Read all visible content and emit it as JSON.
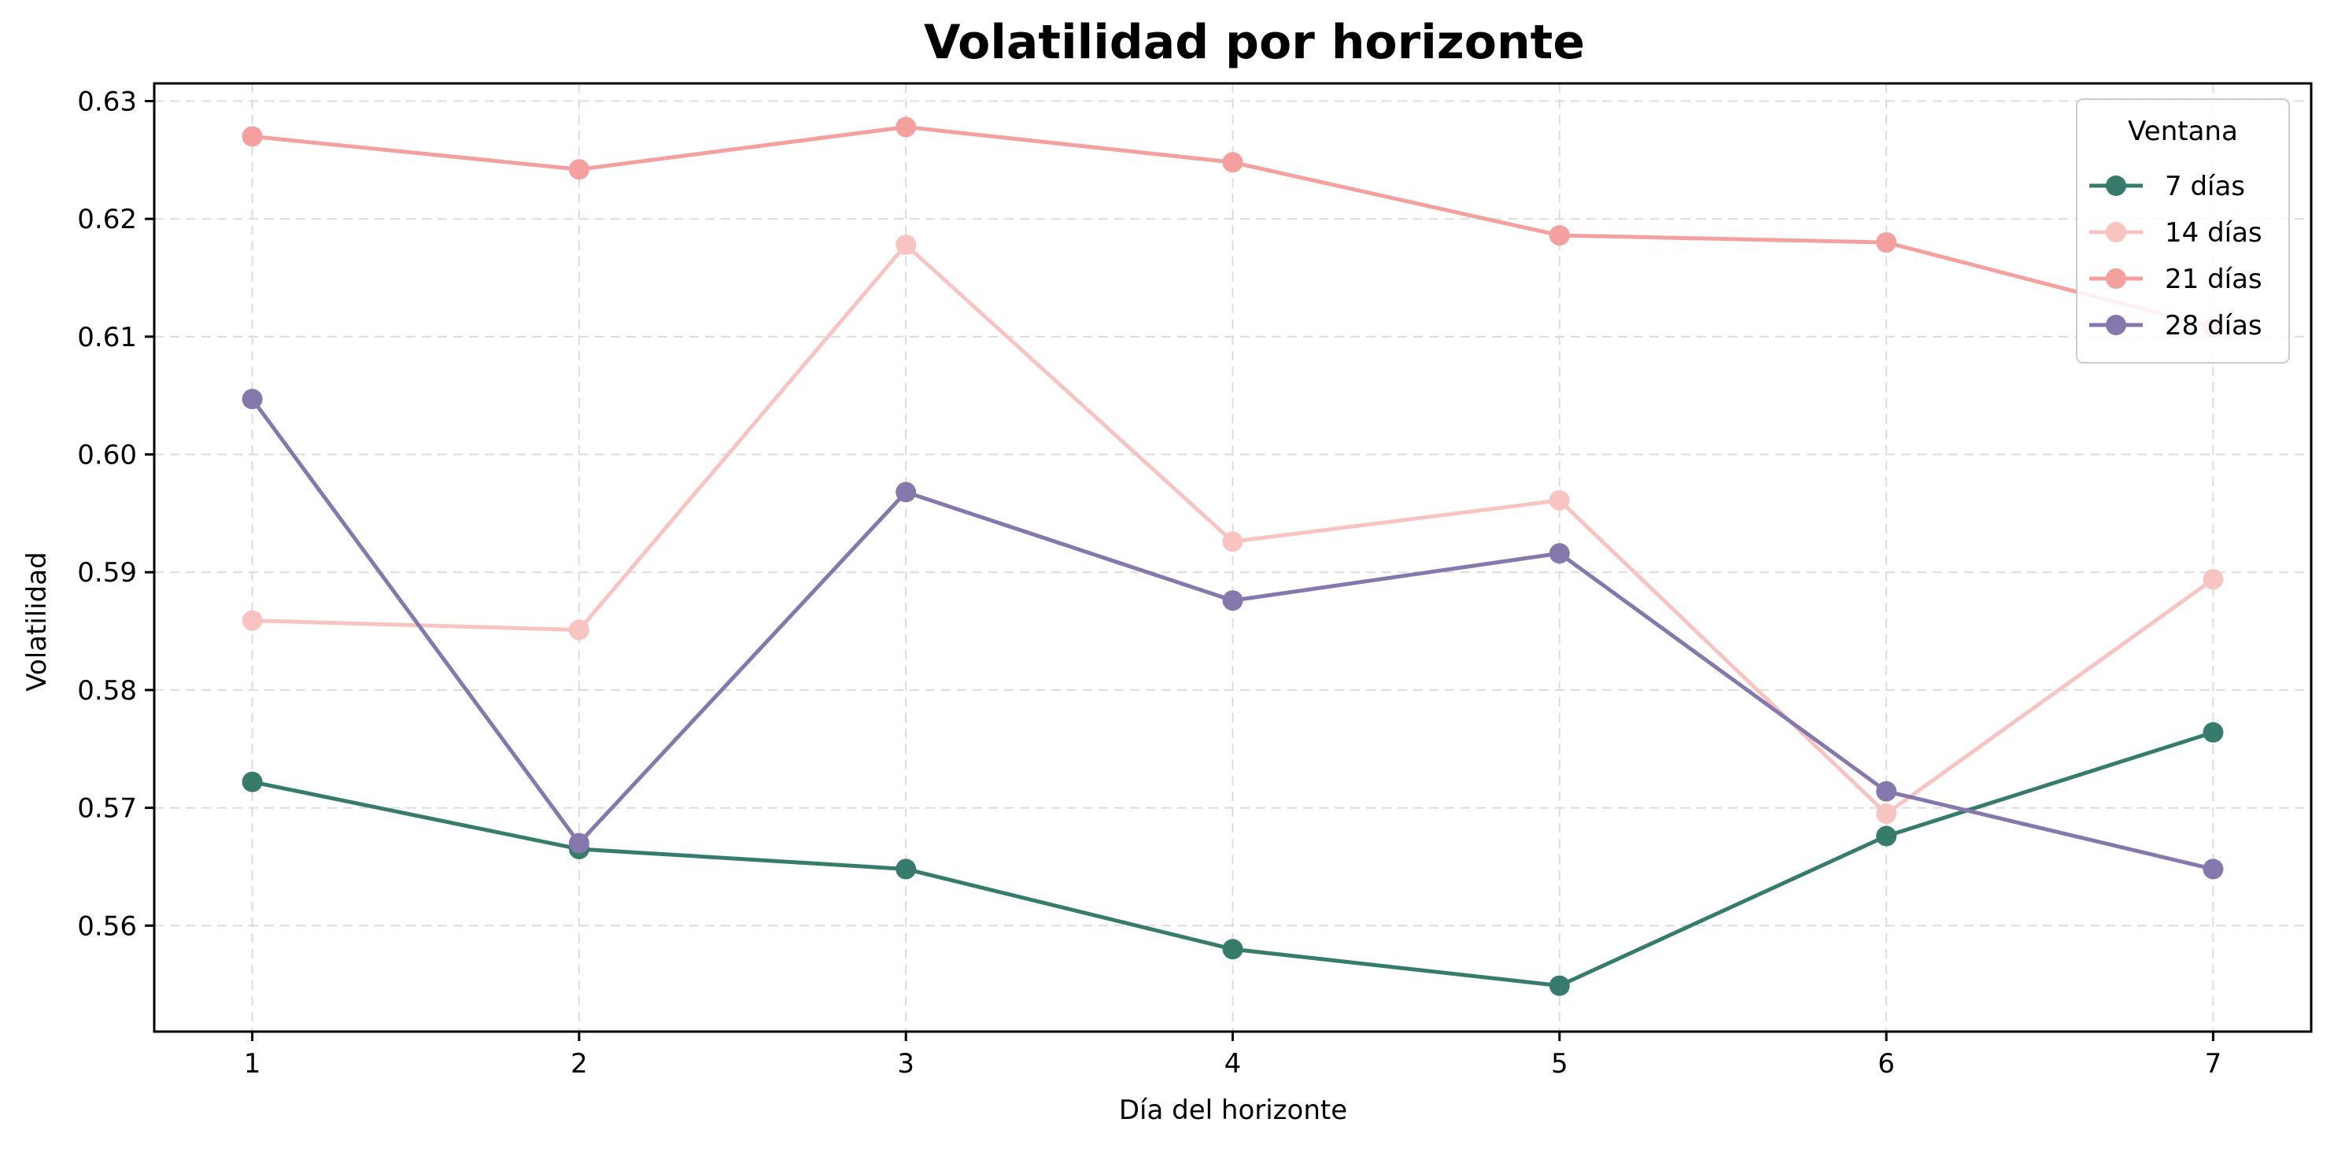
{
  "chart_data": {
    "type": "line",
    "title": "Volatilidad por horizonte",
    "xlabel": "Día del horizonte",
    "ylabel": "Volatilidad",
    "x": [
      1,
      2,
      3,
      4,
      5,
      6,
      7
    ],
    "xlim": [
      0.7,
      7.3
    ],
    "ylim": [
      0.551,
      0.6315
    ],
    "yticks": [
      0.56,
      0.57,
      0.58,
      0.59,
      0.6,
      0.61,
      0.62,
      0.63
    ],
    "ytick_labels": [
      "0.56",
      "0.57",
      "0.58",
      "0.59",
      "0.60",
      "0.61",
      "0.62",
      "0.63"
    ],
    "xtick_labels": [
      "1",
      "2",
      "3",
      "4",
      "5",
      "6",
      "7"
    ],
    "grid": true,
    "legend": {
      "title": "Ventana",
      "placement": "top-right"
    },
    "series": [
      {
        "name": "7 días",
        "color": "#367b6c",
        "values": [
          0.5722,
          0.5665,
          0.5648,
          0.558,
          0.5549,
          0.5676,
          0.5764
        ]
      },
      {
        "name": "14 días",
        "color": "#f8c4c2",
        "values": [
          0.5859,
          0.5851,
          0.6178,
          0.5926,
          0.5961,
          0.5695,
          0.5894
        ]
      },
      {
        "name": "21 días",
        "color": "#f4a09e",
        "values": [
          0.627,
          0.6242,
          0.6278,
          0.6248,
          0.6186,
          0.618,
          0.6108
        ]
      },
      {
        "name": "28 días",
        "color": "#8578ad",
        "values": [
          0.6047,
          0.567,
          0.5968,
          0.5876,
          0.5916,
          0.5714,
          0.5648
        ]
      }
    ]
  }
}
